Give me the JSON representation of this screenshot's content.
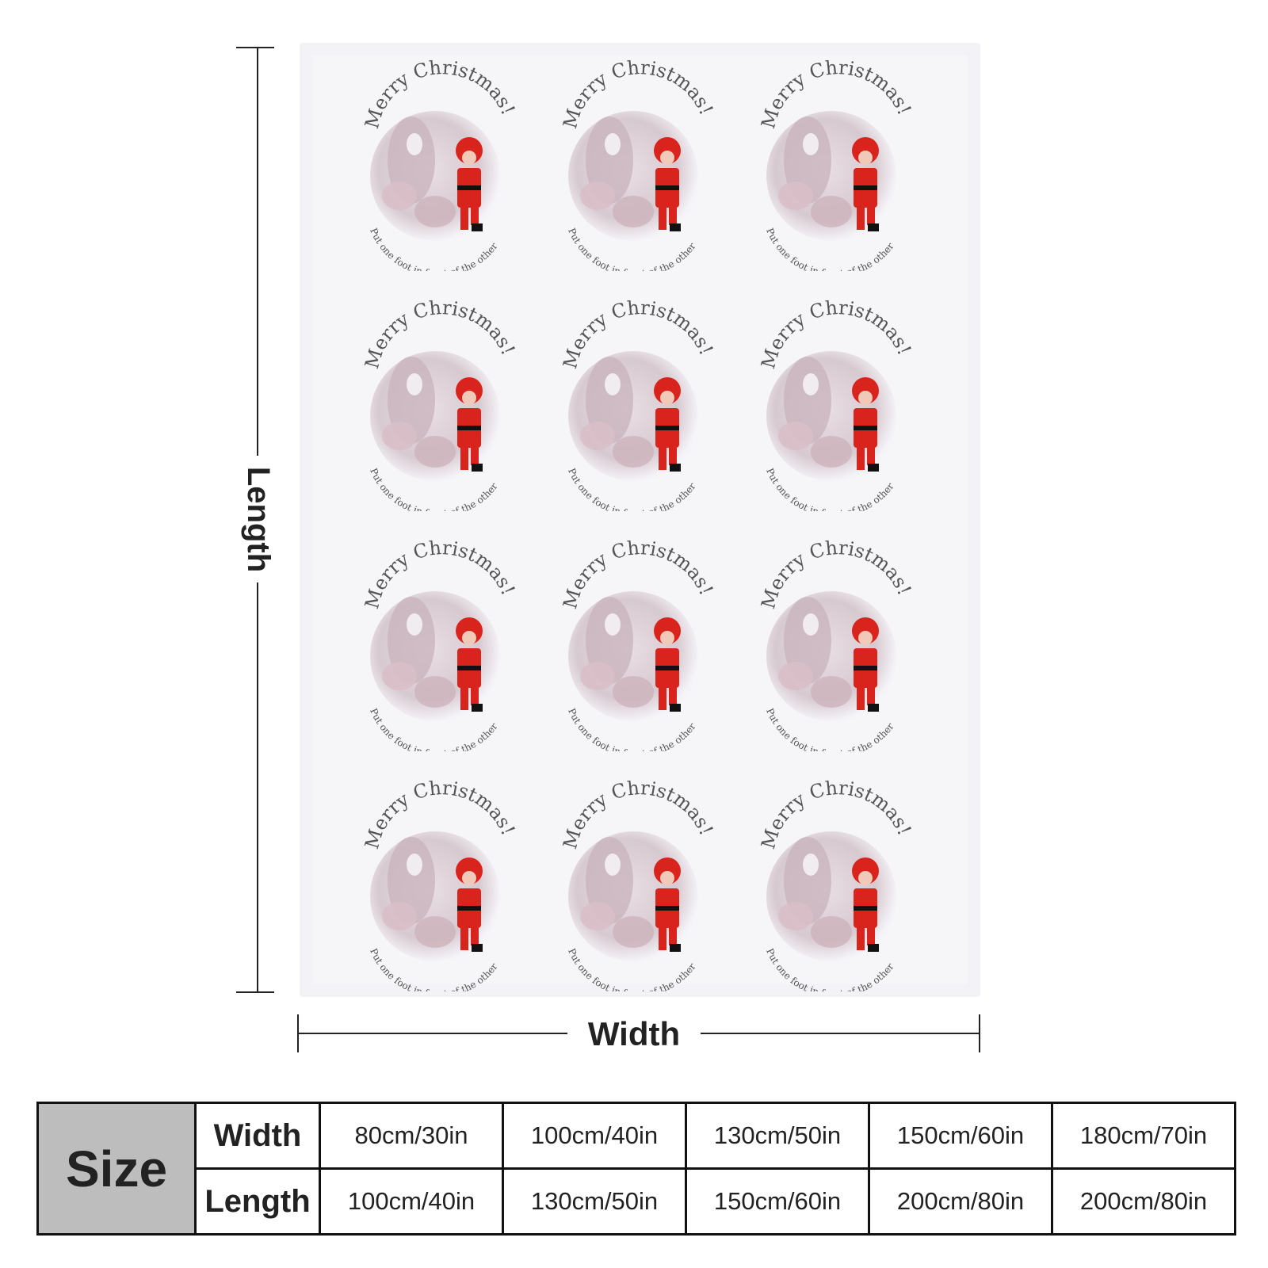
{
  "image": {
    "dimension_labels": {
      "length": "Length",
      "width": "Width"
    },
    "pattern": {
      "top_text": "Merry Christmas!",
      "bottom_text": "Put one foot in front of the other",
      "rows": 4,
      "columns": 3
    },
    "colors": {
      "santa_red": "#d8241c",
      "text_gray": "#555555",
      "background": "#f4f3f7"
    }
  },
  "size_table": {
    "header_label": "Size",
    "width_label": "Width",
    "length_label": "Length",
    "widths": [
      "80cm/30in",
      "100cm/40in",
      "130cm/50in",
      "150cm/60in",
      "180cm/70in"
    ],
    "lengths": [
      "100cm/40in",
      "130cm/50in",
      "150cm/60in",
      "200cm/80in",
      "200cm/80in"
    ]
  }
}
